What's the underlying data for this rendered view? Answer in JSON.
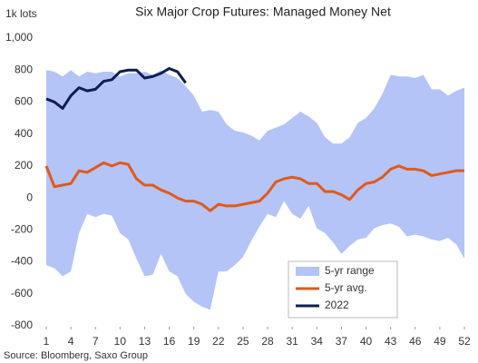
{
  "chart_data": {
    "type": "line",
    "title": "Six Major Crop Futures: Managed Money Net",
    "y_label": "1k lots",
    "source": "Source: Bloomberg, Saxo Group",
    "x": [
      1,
      2,
      3,
      4,
      5,
      6,
      7,
      8,
      9,
      10,
      11,
      12,
      13,
      14,
      15,
      16,
      17,
      18,
      19,
      20,
      21,
      22,
      23,
      24,
      25,
      26,
      27,
      28,
      29,
      30,
      31,
      32,
      33,
      34,
      35,
      36,
      37,
      38,
      39,
      40,
      41,
      42,
      43,
      44,
      45,
      46,
      47,
      48,
      49,
      50,
      51,
      52
    ],
    "xlim": [
      1,
      52
    ],
    "xticks": [
      1,
      4,
      7,
      10,
      13,
      16,
      19,
      22,
      25,
      28,
      31,
      34,
      37,
      40,
      43,
      46,
      49,
      52
    ],
    "ylim": [
      -800,
      1000
    ],
    "yticks": [
      -800,
      -600,
      -400,
      -200,
      0,
      200,
      400,
      600,
      800,
      {
        "value": 1000,
        "label": "1,000"
      }
    ],
    "grid": false,
    "legend": "lower right",
    "series": [
      {
        "name": "5-yr range",
        "type": "range",
        "color": "#b4c4f7",
        "upper": [
          800,
          790,
          760,
          800,
          760,
          790,
          780,
          790,
          790,
          760,
          780,
          780,
          790,
          770,
          800,
          770,
          750,
          700,
          640,
          540,
          550,
          540,
          460,
          420,
          410,
          390,
          360,
          420,
          440,
          460,
          500,
          540,
          510,
          470,
          380,
          340,
          340,
          380,
          470,
          500,
          560,
          650,
          770,
          760,
          760,
          750,
          770,
          680,
          680,
          640,
          670,
          690
        ],
        "lower": [
          -420,
          -440,
          -490,
          -460,
          -220,
          -100,
          -120,
          -100,
          -110,
          -220,
          -260,
          -380,
          -490,
          -480,
          -350,
          -460,
          -490,
          -600,
          -650,
          -680,
          -700,
          -460,
          -460,
          -420,
          -370,
          -270,
          -180,
          -100,
          -120,
          -20,
          -100,
          -130,
          -50,
          -190,
          -220,
          -280,
          -350,
          -300,
          -260,
          -250,
          -190,
          -170,
          -160,
          -180,
          -240,
          -230,
          -240,
          -260,
          -270,
          -250,
          -290,
          -380
        ]
      },
      {
        "name": "5-yr avg.",
        "color": "#e05a1b",
        "values": [
          200,
          70,
          80,
          90,
          170,
          160,
          190,
          220,
          200,
          220,
          210,
          120,
          80,
          80,
          50,
          30,
          0,
          -20,
          -20,
          -40,
          -80,
          -40,
          -50,
          -50,
          -40,
          -30,
          -20,
          30,
          100,
          120,
          130,
          120,
          90,
          90,
          40,
          40,
          20,
          -10,
          50,
          90,
          100,
          130,
          180,
          200,
          180,
          180,
          170,
          140,
          150,
          160,
          170,
          170
        ]
      },
      {
        "name": "2022",
        "color": "#0d1f4f",
        "values": [
          620,
          600,
          560,
          640,
          690,
          670,
          680,
          730,
          740,
          790,
          800,
          800,
          750,
          760,
          780,
          810,
          790,
          720,
          null,
          null,
          null,
          null,
          null,
          null,
          null,
          null,
          null,
          null,
          null,
          null,
          null,
          null,
          null,
          null,
          null,
          null,
          null,
          null,
          null,
          null,
          null,
          null,
          null,
          null,
          null,
          null,
          null,
          null,
          null,
          null,
          null,
          null
        ]
      }
    ]
  }
}
